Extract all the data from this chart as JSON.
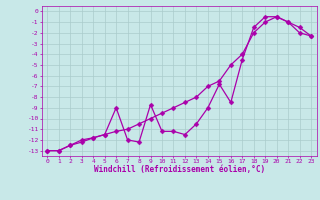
{
  "title": "",
  "xlabel": "Windchill (Refroidissement éolien,°C)",
  "ylabel": "",
  "background_color": "#c8e8e8",
  "grid_color": "#aacccc",
  "line_color": "#aa00aa",
  "xlim": [
    -0.5,
    23.5
  ],
  "ylim": [
    -13.5,
    0.5
  ],
  "xticks": [
    0,
    1,
    2,
    3,
    4,
    5,
    6,
    7,
    8,
    9,
    10,
    11,
    12,
    13,
    14,
    15,
    16,
    17,
    18,
    19,
    20,
    21,
    22,
    23
  ],
  "yticks": [
    0,
    -1,
    -2,
    -3,
    -4,
    -5,
    -6,
    -7,
    -8,
    -9,
    -10,
    -11,
    -12,
    -13
  ],
  "line1_x": [
    0,
    1,
    2,
    3,
    4,
    5,
    6,
    7,
    8,
    9,
    10,
    11,
    12,
    13,
    14,
    15,
    16,
    17,
    18,
    19,
    20,
    21,
    22,
    23
  ],
  "line1_y": [
    -13,
    -13,
    -12.5,
    -12.2,
    -11.8,
    -11.5,
    -9.0,
    -12.0,
    -12.2,
    -8.7,
    -11.2,
    -11.2,
    -11.5,
    -10.5,
    -9.0,
    -6.8,
    -8.5,
    -4.5,
    -1.5,
    -0.5,
    -0.5,
    -1.0,
    -2.0,
    -2.3
  ],
  "line2_x": [
    0,
    1,
    2,
    3,
    4,
    5,
    6,
    7,
    8,
    9,
    10,
    11,
    12,
    13,
    14,
    15,
    16,
    17,
    18,
    19,
    20,
    21,
    22,
    23
  ],
  "line2_y": [
    -13,
    -13,
    -12.5,
    -12.0,
    -11.8,
    -11.5,
    -11.2,
    -11.0,
    -10.5,
    -10.0,
    -9.5,
    -9.0,
    -8.5,
    -8.0,
    -7.0,
    -6.5,
    -5.0,
    -4.0,
    -2.0,
    -1.0,
    -0.5,
    -1.0,
    -1.5,
    -2.3
  ],
  "markersize": 2.5,
  "linewidth": 0.9,
  "tick_fontsize": 4.5,
  "label_fontsize": 5.5
}
